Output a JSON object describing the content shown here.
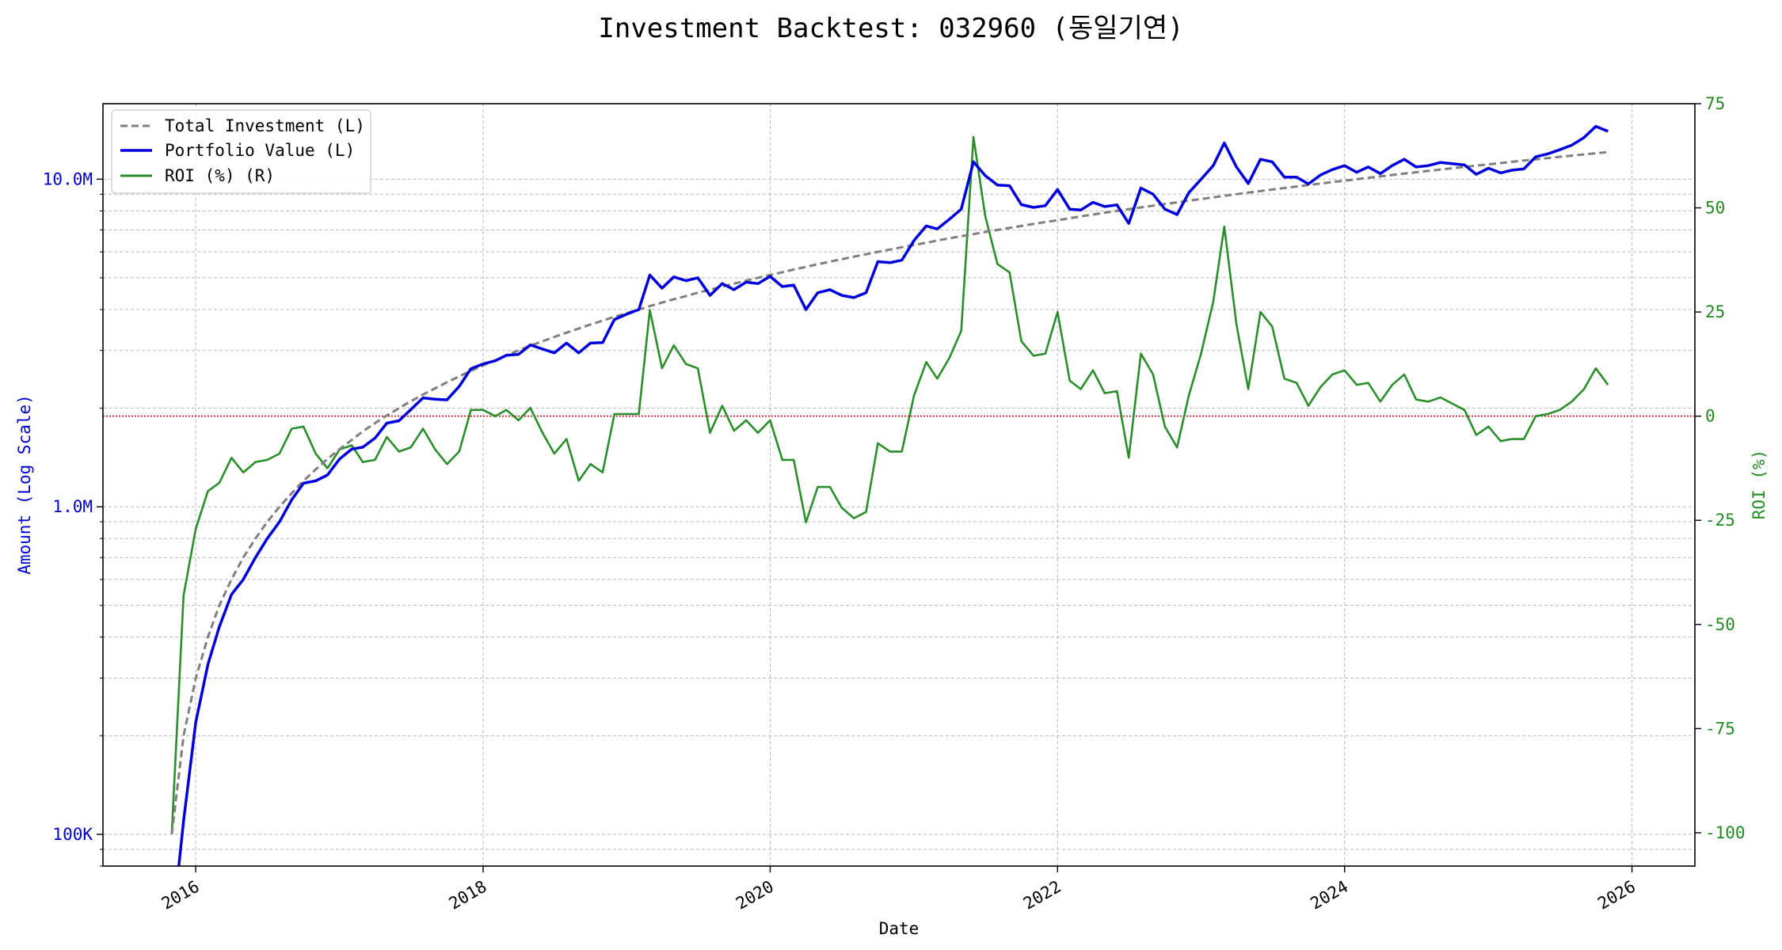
{
  "chart_data": {
    "type": "line",
    "title": "Investment Backtest: 032960 (동일기연)",
    "xlabel": "Date",
    "ylabel_left": "Amount (Log Scale)",
    "ylabel_right": "ROI (%)",
    "x_ticks": [
      "2016",
      "2018",
      "2020",
      "2022",
      "2024",
      "2026"
    ],
    "left_ticks": [
      {
        "value": 100000,
        "label": "100K"
      },
      {
        "value": 1000000,
        "label": "1.0M"
      },
      {
        "value": 10000000,
        "label": "10.0M"
      }
    ],
    "right_ticks": [
      75,
      50,
      25,
      0,
      -25,
      -50,
      -75,
      -100
    ],
    "left_scale": "log",
    "left_ylim": [
      80000,
      17000000
    ],
    "right_ylim": [
      -108,
      75
    ],
    "x_range": [
      "2015-05-10",
      "2026-06-10"
    ],
    "grid": true,
    "legend_position": "upper-left",
    "reference_line": {
      "axis": "right",
      "value": 0,
      "color": "#cc0000"
    },
    "colors": {
      "investment": "#808080",
      "portfolio": "#0000dd",
      "roi": "#2a8f2a"
    },
    "series": [
      {
        "name": "Total Investment (L)",
        "axis": "left",
        "style": "dashed",
        "dates": [
          "2015-11",
          "2015-12",
          "2016-01",
          "2016-02",
          "2016-03",
          "2016-04",
          "2016-05",
          "2016-06",
          "2016-07",
          "2016-08",
          "2016-09",
          "2016-10",
          "2016-11",
          "2016-12",
          "2017-01",
          "2017-02",
          "2017-03",
          "2017-04",
          "2017-05",
          "2017-06",
          "2017-07",
          "2017-08",
          "2017-09",
          "2017-10",
          "2017-11",
          "2017-12",
          "2018-01",
          "2018-02",
          "2018-03",
          "2018-04",
          "2018-05",
          "2018-06",
          "2018-07",
          "2018-08",
          "2018-09",
          "2018-10",
          "2018-11",
          "2018-12",
          "2019-01",
          "2019-02",
          "2019-03",
          "2019-04",
          "2019-05",
          "2019-06",
          "2019-07",
          "2019-08",
          "2019-09",
          "2019-10",
          "2019-11",
          "2019-12",
          "2020-01",
          "2020-02",
          "2020-03",
          "2020-04",
          "2020-05",
          "2020-06",
          "2020-07",
          "2020-08",
          "2020-09",
          "2020-10",
          "2020-11",
          "2020-12",
          "2021-01",
          "2021-02",
          "2021-03",
          "2021-04",
          "2021-05",
          "2021-06",
          "2021-07",
          "2021-08",
          "2021-09",
          "2021-10",
          "2021-11",
          "2021-12",
          "2022-01",
          "2022-02",
          "2022-03",
          "2022-04",
          "2022-05",
          "2022-06",
          "2022-07",
          "2022-08",
          "2022-09",
          "2022-10",
          "2022-11",
          "2022-12",
          "2023-01",
          "2023-02",
          "2023-03",
          "2023-04",
          "2023-05",
          "2023-06",
          "2023-07",
          "2023-08",
          "2023-09",
          "2023-10",
          "2023-11",
          "2023-12",
          "2024-01",
          "2024-02",
          "2024-03",
          "2024-04",
          "2024-05",
          "2024-06",
          "2024-07",
          "2024-08",
          "2024-09",
          "2024-10",
          "2024-11",
          "2024-12",
          "2025-01",
          "2025-02",
          "2025-03",
          "2025-04",
          "2025-05",
          "2025-06",
          "2025-07",
          "2025-08",
          "2025-09",
          "2025-10",
          "2025-11"
        ],
        "values": [
          100000,
          200000,
          300000,
          400000,
          500000,
          600000,
          700000,
          800000,
          900000,
          1000000,
          1100000,
          1200000,
          1300000,
          1400000,
          1500000,
          1600000,
          1700000,
          1800000,
          1900000,
          2000000,
          2100000,
          2200000,
          2300000,
          2400000,
          2500000,
          2600000,
          2700000,
          2800000,
          2900000,
          3000000,
          3100000,
          3200000,
          3300000,
          3400000,
          3500000,
          3600000,
          3700000,
          3800000,
          3900000,
          4000000,
          4100000,
          4200000,
          4300000,
          4400000,
          4500000,
          4600000,
          4700000,
          4800000,
          4900000,
          5000000,
          5100000,
          5200000,
          5300000,
          5400000,
          5500000,
          5600000,
          5700000,
          5800000,
          5900000,
          6000000,
          6100000,
          6200000,
          6300000,
          6400000,
          6500000,
          6600000,
          6700000,
          6800000,
          6900000,
          7000000,
          7100000,
          7200000,
          7300000,
          7400000,
          7500000,
          7600000,
          7700000,
          7800000,
          7900000,
          8000000,
          8100000,
          8200000,
          8300000,
          8400000,
          8500000,
          8600000,
          8700000,
          8800000,
          8900000,
          9000000,
          9100000,
          9200000,
          9300000,
          9400000,
          9500000,
          9600000,
          9700000,
          9800000,
          9900000,
          10000000,
          10100000,
          10200000,
          10300000,
          10400000,
          10500000,
          10600000,
          10700000,
          10800000,
          10900000,
          11000000,
          11100000,
          11200000,
          11300000,
          11400000,
          11500000,
          11600000,
          11700000,
          11800000,
          11900000,
          12000000,
          12100000
        ]
      },
      {
        "name": "Portfolio Value (L)",
        "axis": "left",
        "style": "solid",
        "dates": [
          "2015-11",
          "2015-12",
          "2016-01",
          "2016-02",
          "2016-03",
          "2016-04",
          "2016-05",
          "2016-06",
          "2016-07",
          "2016-08",
          "2016-09",
          "2016-10",
          "2016-11",
          "2016-12",
          "2017-01",
          "2017-02",
          "2017-03",
          "2017-04",
          "2017-05",
          "2017-06",
          "2017-07",
          "2017-08",
          "2017-09",
          "2017-10",
          "2017-11",
          "2017-12",
          "2018-01",
          "2018-02",
          "2018-03",
          "2018-04",
          "2018-05",
          "2018-06",
          "2018-07",
          "2018-08",
          "2018-09",
          "2018-10",
          "2018-11",
          "2018-12",
          "2019-01",
          "2019-02",
          "2019-03",
          "2019-04",
          "2019-05",
          "2019-06",
          "2019-07",
          "2019-08",
          "2019-09",
          "2019-10",
          "2019-11",
          "2019-12",
          "2020-01",
          "2020-02",
          "2020-03",
          "2020-04",
          "2020-05",
          "2020-06",
          "2020-07",
          "2020-08",
          "2020-09",
          "2020-10",
          "2020-11",
          "2020-12",
          "2021-01",
          "2021-02",
          "2021-03",
          "2021-04",
          "2021-05",
          "2021-06",
          "2021-07",
          "2021-08",
          "2021-09",
          "2021-10",
          "2021-11",
          "2021-12",
          "2022-01",
          "2022-02",
          "2022-03",
          "2022-04",
          "2022-05",
          "2022-06",
          "2022-07",
          "2022-08",
          "2022-09",
          "2022-10",
          "2022-11",
          "2022-12",
          "2023-01",
          "2023-02",
          "2023-03",
          "2023-04",
          "2023-05",
          "2023-06",
          "2023-07",
          "2023-08",
          "2023-09",
          "2023-10",
          "2023-11",
          "2023-12",
          "2024-01",
          "2024-02",
          "2024-03",
          "2024-04",
          "2024-05",
          "2024-06",
          "2024-07",
          "2024-08",
          "2024-09",
          "2024-10",
          "2024-11",
          "2024-12",
          "2025-01",
          "2025-02",
          "2025-03",
          "2025-04",
          "2025-05",
          "2025-06",
          "2025-07",
          "2025-08",
          "2025-09",
          "2025-10",
          "2025-11"
        ],
        "values": [
          50000,
          110000,
          220000,
          330000,
          430000,
          540000,
          600000,
          700000,
          800000,
          900000,
          1050000,
          1180000,
          1200000,
          1250000,
          1400000,
          1500000,
          1520000,
          1620000,
          1800000,
          1830000,
          1980000,
          2150000,
          2130000,
          2120000,
          2330000,
          2640000,
          2730000,
          2790000,
          2900000,
          2920000,
          3120000,
          3030000,
          2950000,
          3160000,
          2950000,
          3160000,
          3170000,
          3730000,
          3870000,
          4000000,
          5100000,
          4650000,
          5030000,
          4900000,
          5000000,
          4420000,
          4800000,
          4600000,
          4850000,
          4800000,
          5050000,
          4700000,
          4750000,
          4000000,
          4500000,
          4600000,
          4420000,
          4350000,
          4500000,
          5600000,
          5560000,
          5660000,
          6500000,
          7200000,
          7050000,
          7550000,
          8100000,
          11300000,
          10250000,
          9600000,
          9550000,
          8360000,
          8200000,
          8300000,
          9300000,
          8100000,
          8050000,
          8500000,
          8250000,
          8350000,
          7330000,
          9400000,
          9000000,
          8100000,
          7800000,
          9100000,
          10000000,
          11000000,
          12900000,
          10900000,
          9700000,
          11500000,
          11300000,
          10150000,
          10150000,
          9670000,
          10300000,
          10700000,
          11000000,
          10500000,
          10900000,
          10400000,
          11000000,
          11500000,
          10900000,
          11000000,
          11250000,
          11150000,
          11050000,
          10350000,
          10800000,
          10450000,
          10650000,
          10750000,
          11700000,
          11950000,
          12300000,
          12700000,
          13400000,
          14500000,
          14000000
        ]
      },
      {
        "name": "ROI (%) (R)",
        "axis": "right",
        "style": "solid",
        "dates": [
          "2015-11",
          "2015-12",
          "2016-01",
          "2016-02",
          "2016-03",
          "2016-04",
          "2016-05",
          "2016-06",
          "2016-07",
          "2016-08",
          "2016-09",
          "2016-10",
          "2016-11",
          "2016-12",
          "2017-01",
          "2017-02",
          "2017-03",
          "2017-04",
          "2017-05",
          "2017-06",
          "2017-07",
          "2017-08",
          "2017-09",
          "2017-10",
          "2017-11",
          "2017-12",
          "2018-01",
          "2018-02",
          "2018-03",
          "2018-04",
          "2018-05",
          "2018-06",
          "2018-07",
          "2018-08",
          "2018-09",
          "2018-10",
          "2018-11",
          "2018-12",
          "2019-01",
          "2019-02",
          "2019-03",
          "2019-04",
          "2019-05",
          "2019-06",
          "2019-07",
          "2019-08",
          "2019-09",
          "2019-10",
          "2019-11",
          "2019-12",
          "2020-01",
          "2020-02",
          "2020-03",
          "2020-04",
          "2020-05",
          "2020-06",
          "2020-07",
          "2020-08",
          "2020-09",
          "2020-10",
          "2020-11",
          "2020-12",
          "2021-01",
          "2021-02",
          "2021-03",
          "2021-04",
          "2021-05",
          "2021-06",
          "2021-07",
          "2021-08",
          "2021-09",
          "2021-10",
          "2021-11",
          "2021-12",
          "2022-01",
          "2022-02",
          "2022-03",
          "2022-04",
          "2022-05",
          "2022-06",
          "2022-07",
          "2022-08",
          "2022-09",
          "2022-10",
          "2022-11",
          "2022-12",
          "2023-01",
          "2023-02",
          "2023-03",
          "2023-04",
          "2023-05",
          "2023-06",
          "2023-07",
          "2023-08",
          "2023-09",
          "2023-10",
          "2023-11",
          "2023-12",
          "2024-01",
          "2024-02",
          "2024-03",
          "2024-04",
          "2024-05",
          "2024-06",
          "2024-07",
          "2024-08",
          "2024-09",
          "2024-10",
          "2024-11",
          "2024-12",
          "2025-01",
          "2025-02",
          "2025-03",
          "2025-04",
          "2025-05",
          "2025-06",
          "2025-07",
          "2025-08",
          "2025-09",
          "2025-10",
          "2025-11"
        ],
        "values": [
          -100,
          -43,
          -27,
          -18,
          -16,
          -10,
          -13.5,
          -11,
          -10.5,
          -9,
          -3,
          -2.5,
          -9,
          -12.5,
          -8,
          -7,
          -11,
          -10.5,
          -5,
          -8.5,
          -7.5,
          -3,
          -8,
          -11.5,
          -8.5,
          1.5,
          1.5,
          0,
          1.5,
          -1,
          2,
          -4,
          -9,
          -5.5,
          -15.5,
          -11.5,
          -13.5,
          0.5,
          0.5,
          0.5,
          25.5,
          11.5,
          17,
          12.5,
          11.5,
          -4,
          2.5,
          -3.5,
          -1,
          -4,
          -1,
          -10.5,
          -10.5,
          -25.5,
          -17,
          -17,
          -22,
          -24.5,
          -23,
          -6.5,
          -8.5,
          -8.5,
          5,
          13,
          9,
          14,
          20.5,
          67,
          48,
          36.5,
          34.5,
          18,
          14.5,
          15,
          25,
          8.5,
          6.5,
          11,
          5.5,
          6,
          -10,
          15,
          10,
          -2.5,
          -7.5,
          5,
          15,
          27.5,
          45.5,
          22,
          6.5,
          25,
          21.5,
          9,
          8,
          2.5,
          7,
          10,
          11,
          7.5,
          8,
          3.5,
          7.5,
          10,
          4,
          3.5,
          4.5,
          3,
          1.5,
          -4.5,
          -2.5,
          -6,
          -5.5,
          -5.5,
          0,
          0.5,
          1.5,
          3.5,
          6.5,
          11.5,
          7.5
        ]
      }
    ]
  }
}
